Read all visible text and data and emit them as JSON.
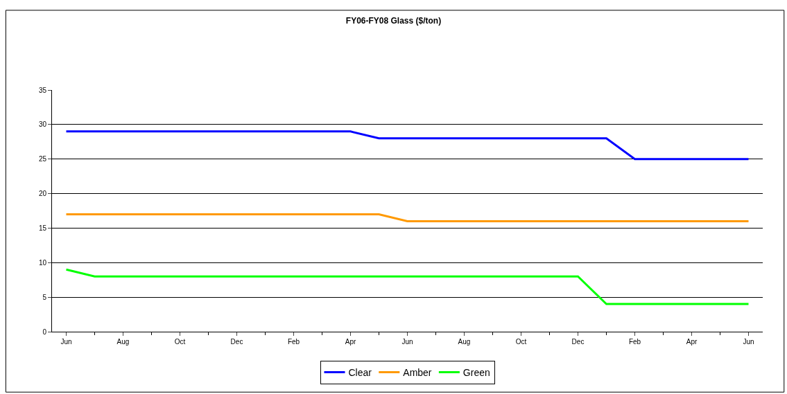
{
  "chart_data": {
    "type": "line",
    "title": "FY06-FY08 Glass ($/ton)",
    "categories": [
      "Jun",
      null,
      "Aug",
      null,
      "Oct",
      null,
      "Dec",
      null,
      "Feb",
      null,
      "Apr",
      null,
      "Jun",
      null,
      "Aug",
      null,
      "Oct",
      null,
      "Dec",
      null,
      "Feb",
      null,
      "Apr",
      null,
      "Jun"
    ],
    "series": [
      {
        "name": "Clear",
        "color": "#0000ff",
        "values": [
          29,
          29,
          29,
          29,
          29,
          29,
          29,
          29,
          29,
          29,
          29,
          28,
          28,
          28,
          28,
          28,
          28,
          28,
          28,
          28,
          25,
          25,
          25,
          25,
          25
        ]
      },
      {
        "name": "Amber",
        "color": "#ff9900",
        "values": [
          17,
          17,
          17,
          17,
          17,
          17,
          17,
          17,
          17,
          17,
          17,
          17,
          16,
          16,
          16,
          16,
          16,
          16,
          16,
          16,
          16,
          16,
          16,
          16,
          16
        ]
      },
      {
        "name": "Green",
        "color": "#00ff00",
        "values": [
          9,
          8,
          8,
          8,
          8,
          8,
          8,
          8,
          8,
          8,
          8,
          8,
          8,
          8,
          8,
          8,
          8,
          8,
          8,
          4,
          4,
          4,
          4,
          4,
          4
        ]
      }
    ],
    "ylim": [
      0,
      35
    ],
    "yticks": [
      0,
      5,
      10,
      15,
      20,
      25,
      30,
      35
    ],
    "grid": "y",
    "legend": "bottom",
    "line_style": "solid"
  }
}
